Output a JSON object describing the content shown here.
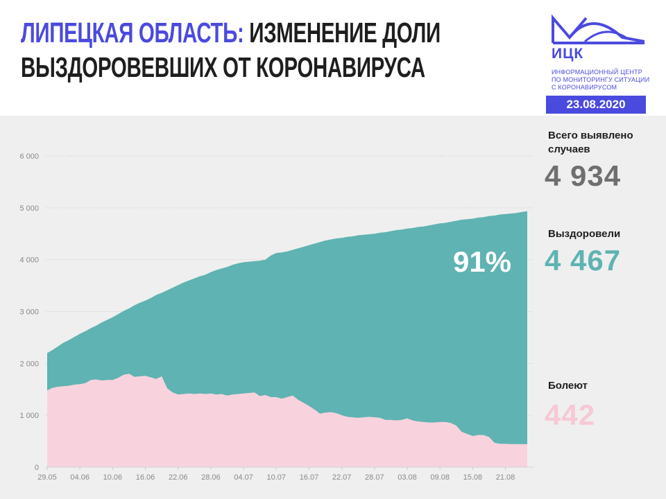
{
  "title": {
    "region": "Липецкая область:",
    "rest_line1": "изменение доли",
    "line2": "выздоровевших от коронавируса"
  },
  "logo": {
    "abbr": "ИЦК",
    "subtitle_lines": [
      "Информационный центр",
      "по мониторингу ситуации",
      "с коронавирусом"
    ]
  },
  "date": "23.08.2020",
  "stats": {
    "total_label_1": "Всего выявлено",
    "total_label_2": "случаев",
    "total_value": "4 934",
    "recovered_label": "Выздоровели",
    "recovered_value": "4 467",
    "sick_label": "Болеют",
    "sick_value": "442"
  },
  "chart_data": {
    "type": "area",
    "stacked": true,
    "x_ticks": [
      "29.05",
      "04.06",
      "10.06",
      "16.06",
      "22.06",
      "28.06",
      "04.07",
      "10.07",
      "16.07",
      "22.07",
      "28.07",
      "03.08",
      "09.08",
      "15.08",
      "21.08"
    ],
    "y_ticks": [
      "0",
      "1 000",
      "2 000",
      "3 000",
      "4 000",
      "5 000",
      "6 000"
    ],
    "ylim": [
      0,
      6000
    ],
    "x_days": 88,
    "annotation": "91%",
    "colors": {
      "recovered": "#5fb3b2",
      "sick": "#f8d3de",
      "background": "#efefef"
    },
    "series": [
      {
        "key": "total",
        "values": [
          2200,
          2260,
          2330,
          2400,
          2450,
          2510,
          2570,
          2620,
          2680,
          2730,
          2790,
          2840,
          2890,
          2950,
          3010,
          3060,
          3120,
          3170,
          3210,
          3260,
          3320,
          3360,
          3410,
          3460,
          3510,
          3560,
          3600,
          3640,
          3680,
          3710,
          3760,
          3800,
          3830,
          3860,
          3900,
          3930,
          3950,
          3960,
          3970,
          3980,
          4000,
          4080,
          4130,
          4140,
          4160,
          4190,
          4220,
          4250,
          4280,
          4310,
          4340,
          4370,
          4390,
          4410,
          4420,
          4440,
          4450,
          4470,
          4480,
          4490,
          4500,
          4520,
          4530,
          4550,
          4570,
          4580,
          4600,
          4610,
          4630,
          4640,
          4660,
          4680,
          4700,
          4710,
          4730,
          4750,
          4770,
          4780,
          4790,
          4810,
          4820,
          4840,
          4850,
          4870,
          4880,
          4890,
          4900,
          4920,
          4934
        ]
      },
      {
        "key": "sick",
        "values": [
          1480,
          1530,
          1550,
          1560,
          1570,
          1590,
          1600,
          1620,
          1680,
          1690,
          1670,
          1680,
          1680,
          1720,
          1780,
          1800,
          1740,
          1750,
          1760,
          1730,
          1700,
          1750,
          1520,
          1440,
          1400,
          1410,
          1420,
          1410,
          1420,
          1410,
          1420,
          1400,
          1410,
          1380,
          1400,
          1410,
          1420,
          1430,
          1440,
          1370,
          1390,
          1350,
          1350,
          1320,
          1350,
          1380,
          1300,
          1240,
          1180,
          1110,
          1030,
          1050,
          1060,
          1040,
          1000,
          970,
          960,
          950,
          960,
          970,
          960,
          950,
          910,
          910,
          900,
          910,
          940,
          900,
          880,
          870,
          860,
          860,
          870,
          870,
          850,
          800,
          680,
          640,
          600,
          620,
          620,
          580,
          470,
          450,
          450,
          445,
          445,
          442,
          442
        ]
      }
    ]
  }
}
